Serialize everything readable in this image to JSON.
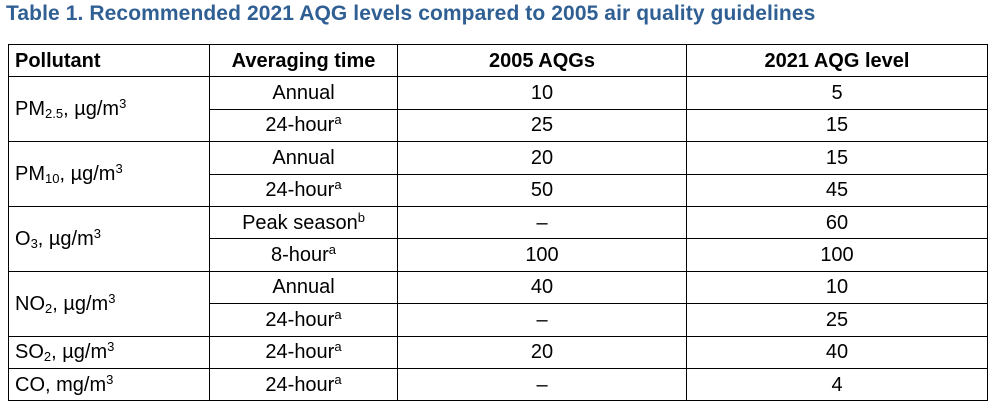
{
  "caption": "Table 1. Recommended 2021 AQG levels compared to 2005 air quality guidelines",
  "headers": {
    "pollutant": "Pollutant",
    "averaging_time": "Averaging time",
    "aqg_2005": "2005 AQGs",
    "aqg_2021": "2021 AQG level"
  },
  "pollutants": [
    {
      "prefix": "PM",
      "sub": "2.5",
      "unit": ", µg/m",
      "sup": "3"
    },
    {
      "prefix": "PM",
      "sub": "10",
      "unit": ", µg/m",
      "sup": "3"
    },
    {
      "prefix": "O",
      "sub": "3",
      "unit": ", µg/m",
      "sup": "3"
    },
    {
      "prefix": "NO",
      "sub": "2",
      "unit": ", µg/m",
      "sup": "3"
    },
    {
      "prefix": "SO",
      "sub": "2",
      "unit": ", µg/m",
      "sup": "3"
    },
    {
      "prefix": "CO, mg/m",
      "sub": "",
      "unit": "",
      "sup": "3"
    }
  ],
  "rows": [
    {
      "time": "Annual",
      "time_sup": "",
      "aqg_2005": "10",
      "aqg_2021": "5"
    },
    {
      "time": "24-hour",
      "time_sup": "a",
      "aqg_2005": "25",
      "aqg_2021": "15"
    },
    {
      "time": "Annual",
      "time_sup": "",
      "aqg_2005": "20",
      "aqg_2021": "15"
    },
    {
      "time": "24-hour",
      "time_sup": "a",
      "aqg_2005": "50",
      "aqg_2021": "45"
    },
    {
      "time": "Peak season",
      "time_sup": "b",
      "aqg_2005": "–",
      "aqg_2021": "60"
    },
    {
      "time": "8-hour",
      "time_sup": "a",
      "aqg_2005": "100",
      "aqg_2021": "100"
    },
    {
      "time": "Annual",
      "time_sup": "",
      "aqg_2005": "40",
      "aqg_2021": "10"
    },
    {
      "time": "24-hour",
      "time_sup": "a",
      "aqg_2005": "–",
      "aqg_2021": "25"
    },
    {
      "time": "24-hour",
      "time_sup": "a",
      "aqg_2005": "20",
      "aqg_2021": "40"
    },
    {
      "time": "24-hour",
      "time_sup": "a",
      "aqg_2005": "–",
      "aqg_2021": "4"
    }
  ],
  "colors": {
    "caption": "#2f5f93",
    "text": "#000000",
    "border": "#000000"
  }
}
